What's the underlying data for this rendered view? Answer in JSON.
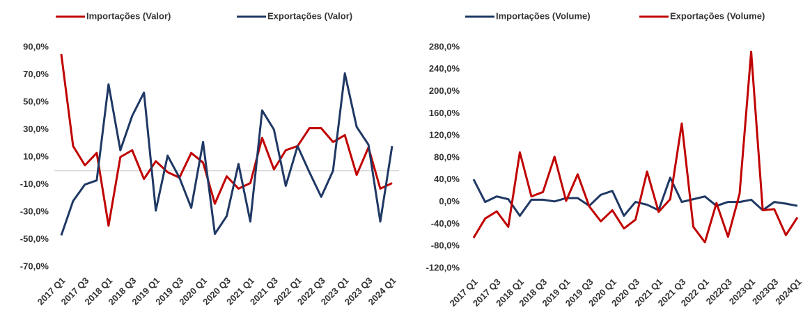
{
  "chart_data": [
    {
      "type": "line",
      "categories": [
        "2017 Q1",
        null,
        "2017 Q3",
        null,
        "2018 Q1",
        null,
        "2018 Q3",
        null,
        "2019 Q1",
        null,
        "2019 Q3",
        null,
        "2020 Q1",
        null,
        "2020 Q3",
        null,
        "2021 Q1",
        null,
        "2021 Q3",
        null,
        "2022 Q1",
        null,
        "2022 Q3",
        null,
        "2023 Q1",
        null,
        "2023 Q3",
        null,
        "2024 Q1"
      ],
      "series": [
        {
          "name": "Importações (Valor)",
          "color": "#c00000",
          "values": [
            85,
            18,
            4,
            13,
            -40,
            10,
            15,
            -6,
            7,
            -1,
            -5,
            13,
            6,
            -24,
            -4,
            -13,
            -9,
            24,
            1,
            15,
            18,
            31,
            31,
            21,
            26,
            -3,
            17,
            -13,
            -9
          ]
        },
        {
          "name": "Exportações (Valor)",
          "color": "#1f3864",
          "values": [
            -47,
            -22,
            -10,
            -7,
            63,
            15,
            40,
            57,
            -29,
            11,
            -5,
            -27,
            21,
            -46,
            -33,
            5,
            -37,
            44,
            30,
            -11,
            18,
            -1,
            -19,
            0,
            71,
            32,
            19,
            -37,
            18
          ]
        }
      ],
      "ylim": [
        -70,
        90
      ],
      "yticks": [
        {
          "value": -70,
          "label": "-70,0%"
        },
        {
          "value": -50,
          "label": "-50,0%"
        },
        {
          "value": -30,
          "label": "-30,0%"
        },
        {
          "value": -10,
          "label": "-10,0%"
        },
        {
          "value": 10,
          "label": "10,0%"
        },
        {
          "value": 30,
          "label": "30,0%"
        },
        {
          "value": 50,
          "label": "50,0%"
        },
        {
          "value": 70,
          "label": "70,0%"
        },
        {
          "value": 90,
          "label": "90,0%"
        }
      ],
      "zero_line": true
    },
    {
      "type": "line",
      "categories": [
        "2017 Q1",
        null,
        "2017 Q3",
        null,
        "2018 Q1",
        null,
        "2018 Q3",
        null,
        "2019 Q1",
        null,
        "2019 Q3",
        null,
        "2020 Q1",
        null,
        "2020 Q3",
        null,
        "2021 Q1",
        null,
        "2021 Q3",
        null,
        "2022 Q1",
        null,
        "2022Q3",
        null,
        "2023Q1",
        null,
        "2023Q3",
        null,
        "2024Q1"
      ],
      "series": [
        {
          "name": "Importações (Volume)",
          "color": "#1f3864",
          "values": [
            41,
            0,
            10,
            5,
            -25,
            4,
            4,
            1,
            7,
            7,
            -7,
            13,
            20,
            -25,
            0,
            -5,
            -15,
            44,
            0,
            5,
            10,
            -7,
            0,
            0,
            4,
            -15,
            0,
            -3,
            -7
          ]
        },
        {
          "name": "Exportações (Volume)",
          "color": "#c00000",
          "values": [
            -65,
            -30,
            -17,
            -45,
            90,
            10,
            18,
            82,
            2,
            50,
            -8,
            -35,
            -15,
            -48,
            -32,
            55,
            -18,
            5,
            142,
            -45,
            -73,
            -2,
            -63,
            15,
            272,
            -15,
            -13,
            -60,
            -28
          ]
        }
      ],
      "ylim": [
        -120,
        280
      ],
      "yticks": [
        {
          "value": -120,
          "label": "-120,0%"
        },
        {
          "value": -80,
          "label": "-80,0%"
        },
        {
          "value": -40,
          "label": "-40,0%"
        },
        {
          "value": 0,
          "label": "0,0%"
        },
        {
          "value": 40,
          "label": "40,0%"
        },
        {
          "value": 80,
          "label": "80,0%"
        },
        {
          "value": 120,
          "label": "120,0%"
        },
        {
          "value": 160,
          "label": "160,0%"
        },
        {
          "value": 200,
          "label": "200,0%"
        },
        {
          "value": 240,
          "label": "240,0%"
        },
        {
          "value": 280,
          "label": "280,0%"
        }
      ],
      "zero_line": false
    }
  ]
}
